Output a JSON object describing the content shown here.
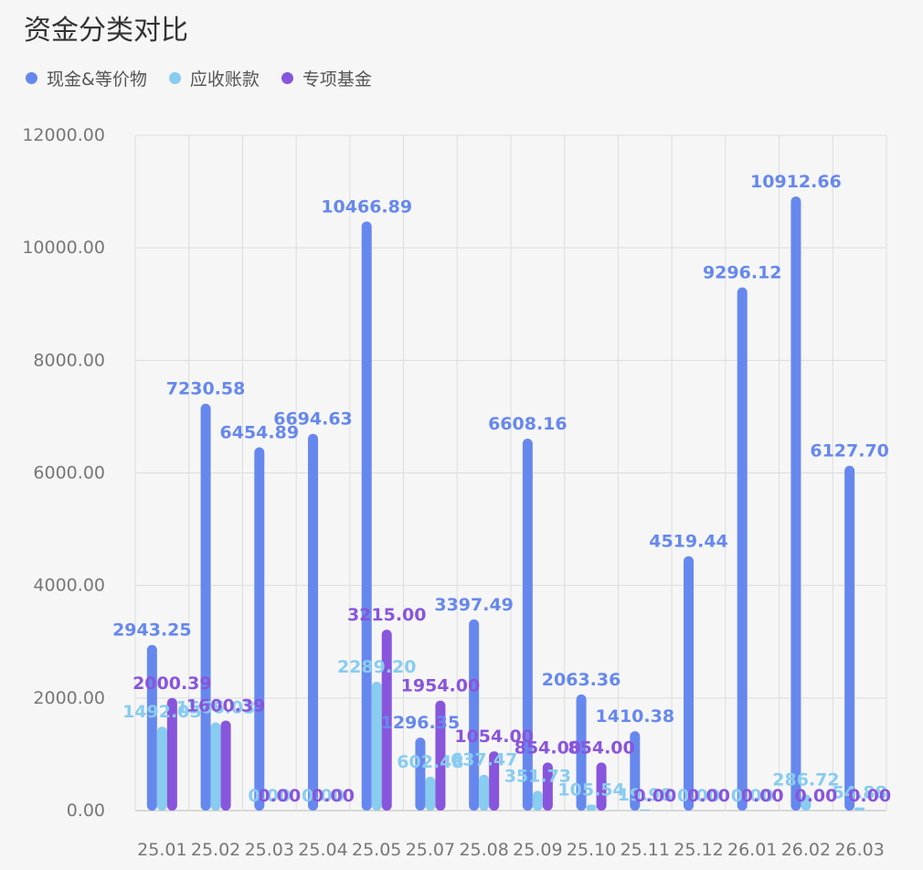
{
  "chart_data": {
    "type": "bar",
    "title": "资金分类对比",
    "xlabel": "",
    "ylabel": "",
    "ylim": [
      0,
      12000
    ],
    "y_ticks": [
      "0.00",
      "2000.00",
      "4000.00",
      "6000.00",
      "8000.00",
      "10000.00",
      "12000.00"
    ],
    "categories": [
      "25.01",
      "25.02",
      "25.03",
      "25.04",
      "25.05",
      "25.07",
      "25.08",
      "25.09",
      "25.10",
      "25.11",
      "25.12",
      "26.01",
      "26.02",
      "26.03"
    ],
    "grid": true,
    "legend_position": "top-left",
    "series": [
      {
        "name": "现金&等价物",
        "color": "#6688ee",
        "values": [
          2943.25,
          7230.58,
          6454.89,
          6694.63,
          10466.89,
          1296.35,
          3397.49,
          6608.16,
          2063.36,
          1410.38,
          4519.44,
          9296.12,
          10912.66,
          6127.7
        ],
        "labels": [
          "2943.25",
          "7230.58",
          "6454.89",
          "6694.63",
          "10466.89",
          "1296.35",
          "3397.49",
          "6608.16",
          "2063.36",
          "1410.38",
          "4519.44",
          "9296.12",
          "10912.66",
          "6127.70"
        ]
      },
      {
        "name": "应收账款",
        "color": "#88ccf0",
        "values": [
          1492.05,
          1566.03,
          0,
          0,
          2289.2,
          602.48,
          637.47,
          351.73,
          105.54,
          19.98,
          0,
          0,
          286.72,
          54.88
        ],
        "labels": [
          "1492.05",
          "1566.03",
          "0.00",
          "0.00",
          "2289.20",
          "602.48",
          "637.47",
          "351.73",
          "105.54",
          "19.98",
          "0.00",
          "0.00",
          "286.72",
          "54.88"
        ]
      },
      {
        "name": "专项基金",
        "color": "#8855dd",
        "values": [
          2000.39,
          1600.39,
          0,
          0,
          3215.0,
          1954.0,
          1054.0,
          854.0,
          854.0,
          0,
          0,
          0,
          0,
          0
        ],
        "labels": [
          "2000.39",
          "1600.39",
          "0.00",
          "0.00",
          "3215.00",
          "1954.00",
          "1054.00",
          "854.00",
          "854.00",
          "0.00",
          "0.00",
          "0.00",
          "0.00",
          "0.00"
        ]
      }
    ]
  }
}
